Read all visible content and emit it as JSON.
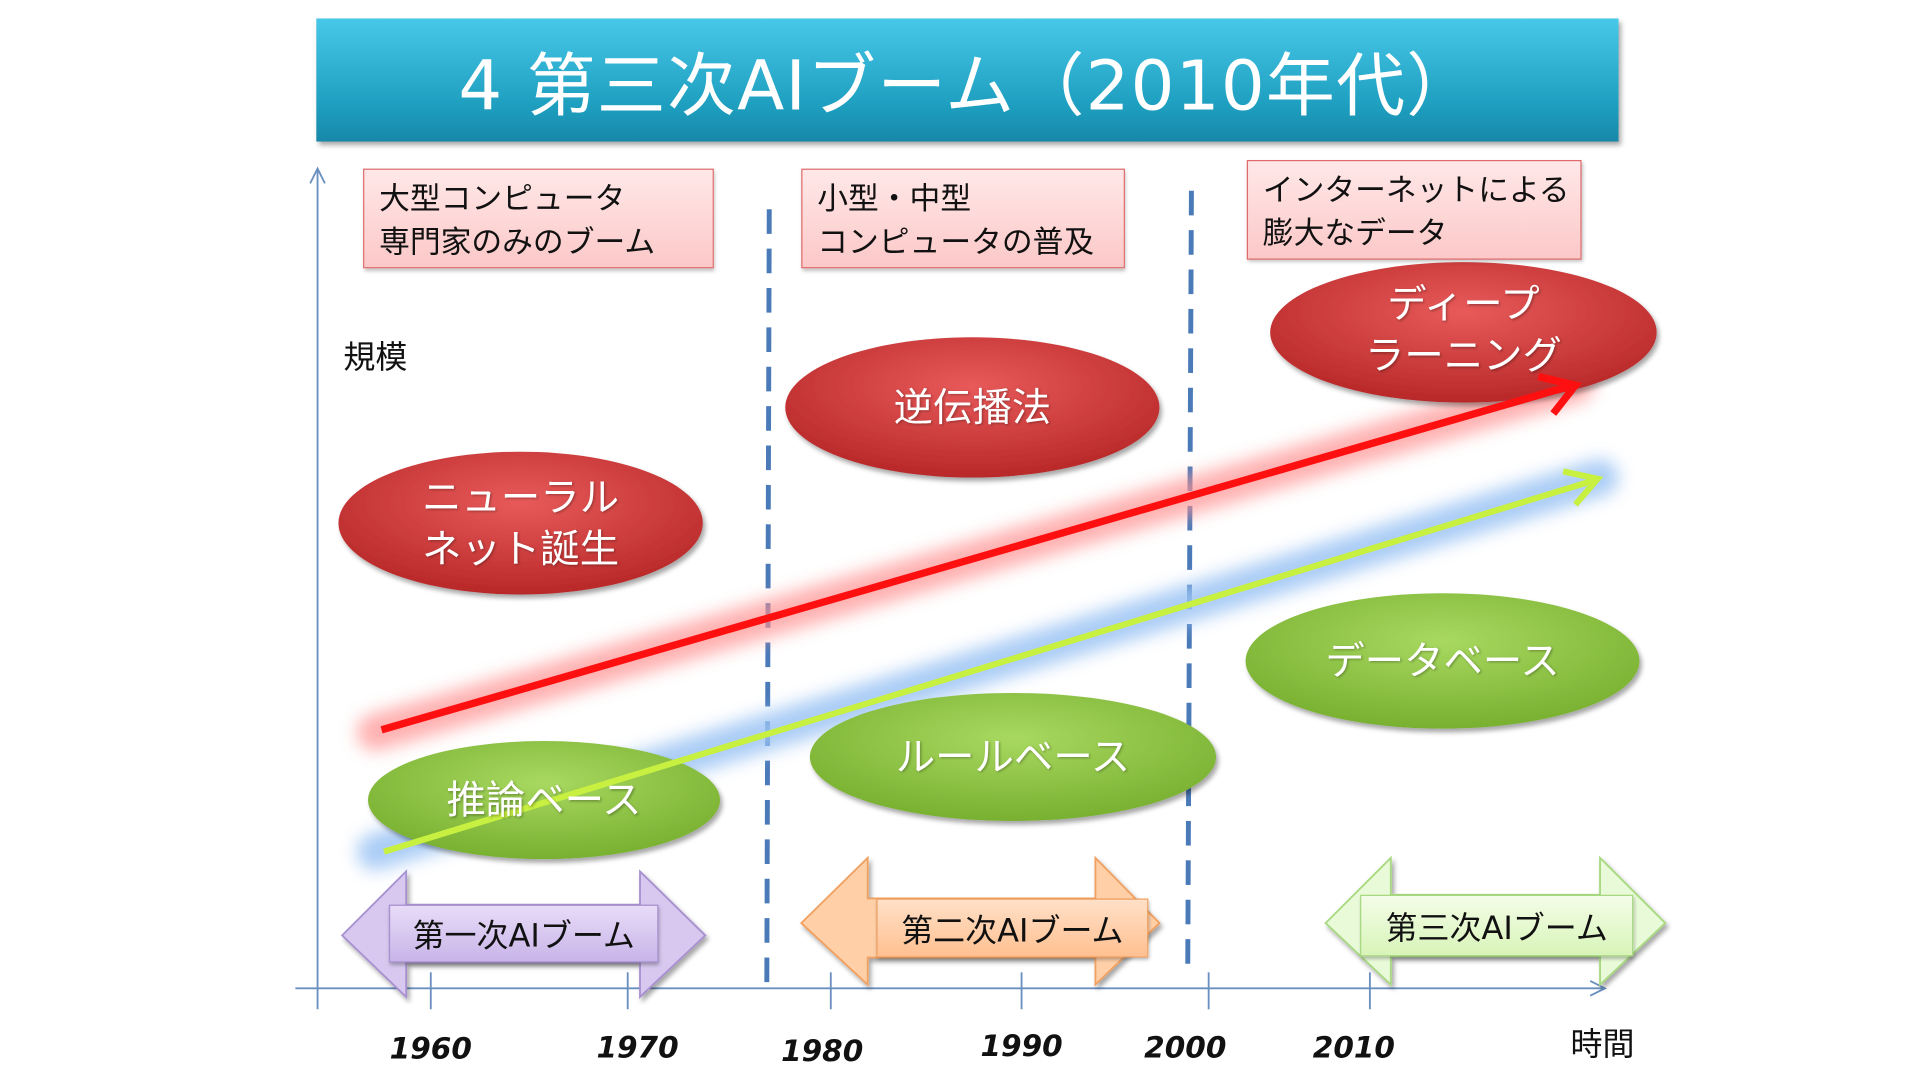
{
  "title": "4  第三次AIブーム（2010年代）",
  "axes": {
    "y_label": "規模",
    "x_label": "時間",
    "years": [
      "1960",
      "1970",
      "1980",
      "1990",
      "2000",
      "2010"
    ]
  },
  "era_notes": [
    "大型コンピュータ\n専門家のみのブーム",
    "小型・中型\nコンピュータの普及",
    "インターネットによる\n膨大なデータ"
  ],
  "red_ellipses": [
    "ニューラル\nネット誕生",
    "逆伝播法",
    "ディープ\nラーニング"
  ],
  "green_ellipses": [
    "推論ベース",
    "ルールベース",
    "データベース"
  ],
  "booms": [
    "第一次AIブーム",
    "第二次AIブーム",
    "第三次AIブーム"
  ],
  "colors": {
    "title_bar": "#1e9fc0",
    "red": "#d03030",
    "green": "#8cc040",
    "trend_red": "#ff1010",
    "trend_green": "#c8f040",
    "dash": "#4a7ab8",
    "boom1": "#d8c8f0",
    "boom2": "#ffc8a0",
    "boom3": "#e0f8c8"
  }
}
